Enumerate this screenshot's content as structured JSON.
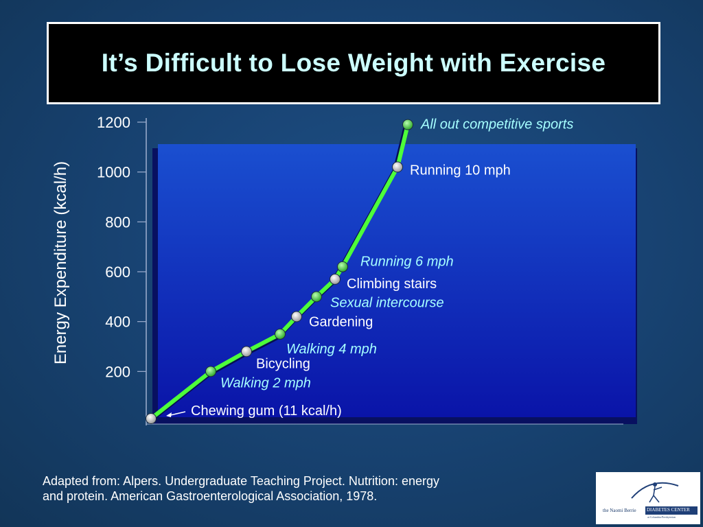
{
  "slide": {
    "title": "It’s Difficult to Lose Weight with Exercise",
    "source_line1": "Adapted from: Alpers. Undergraduate Teaching Project. Nutrition: energy",
    "source_line2": "and protein. American Gastroenterological Association, 1978."
  },
  "logo": {
    "org_text": "the Naomi Berrie",
    "band_text": "DIABETES CENTER",
    "sub_text": "at Columbia-Presbyterian"
  },
  "colors": {
    "background": "#17416f",
    "title_text": "#ccffff",
    "plot_fill": "#0a1fb0",
    "line": "#4dff3a",
    "italic_label": "#a6ffff",
    "plain_label": "#ffffff",
    "marker_green": "#4ade3a",
    "marker_white": "#e6e6e6"
  },
  "chart_data": {
    "type": "line",
    "title": "",
    "xlabel": "",
    "ylabel": "Energy Expenditure (kcal/h)",
    "ylim": [
      0,
      1200
    ],
    "yticks": [
      200,
      400,
      600,
      800,
      1000,
      1200
    ],
    "grid": false,
    "legend": "none",
    "series": [
      {
        "points": [
          {
            "label": "Chewing gum (11 kcal/h)",
            "y": 11,
            "style": "plain",
            "marker": "white"
          },
          {
            "label": "Walking 2 mph",
            "y": 200,
            "style": "italic",
            "marker": "green"
          },
          {
            "label": "Bicycling",
            "y": 280,
            "style": "plain",
            "marker": "white"
          },
          {
            "label": "Walking 4 mph",
            "y": 350,
            "style": "italic",
            "marker": "green"
          },
          {
            "label": "Gardening",
            "y": 420,
            "style": "plain",
            "marker": "white"
          },
          {
            "label": "Sexual intercourse",
            "y": 500,
            "style": "italic",
            "marker": "green"
          },
          {
            "label": "Climbing stairs",
            "y": 570,
            "style": "plain",
            "marker": "white"
          },
          {
            "label": "Running 6 mph",
            "y": 620,
            "style": "italic",
            "marker": "green"
          },
          {
            "label": "Running 10 mph",
            "y": 1020,
            "style": "plain",
            "marker": "white"
          },
          {
            "label": "All out competitive sports",
            "y": 1190,
            "style": "italic",
            "marker": "green"
          }
        ]
      }
    ]
  }
}
